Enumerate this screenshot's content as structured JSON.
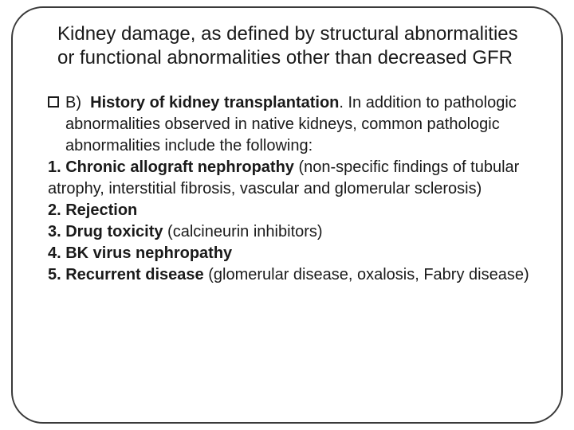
{
  "title": "Kidney damage, as defined by structural abnormalities or functional abnormalities other than decreased GFR",
  "lead": {
    "prefix": "B)",
    "bold": "History of kidney transplantation",
    "tail": ". In addition to pathologic abnormalities observed in native kidneys, common pathologic  abnormalities include the following:"
  },
  "items": {
    "n1a": "1. Chronic allograft nephropathy",
    "n1b": " (non-specific findings of  tubular atrophy, interstitial fibrosis, vascular and glomerular  sclerosis)",
    "n2": "2. Rejection",
    "n3a": "3. Drug toxicity",
    "n3b": " (calcineurin inhibitors)",
    "n4": "4. BK virus nephropathy",
    "n5a": "5. Recurrent disease",
    "n5b": " (glomerular disease, oxalosis, Fabry  disease)"
  },
  "colors": {
    "text": "#1a1a1a",
    "border": "#3a3a3a",
    "background": "#ffffff"
  },
  "typography": {
    "title_fontsize": 24,
    "body_fontsize": 20,
    "font_family": "Arial"
  }
}
